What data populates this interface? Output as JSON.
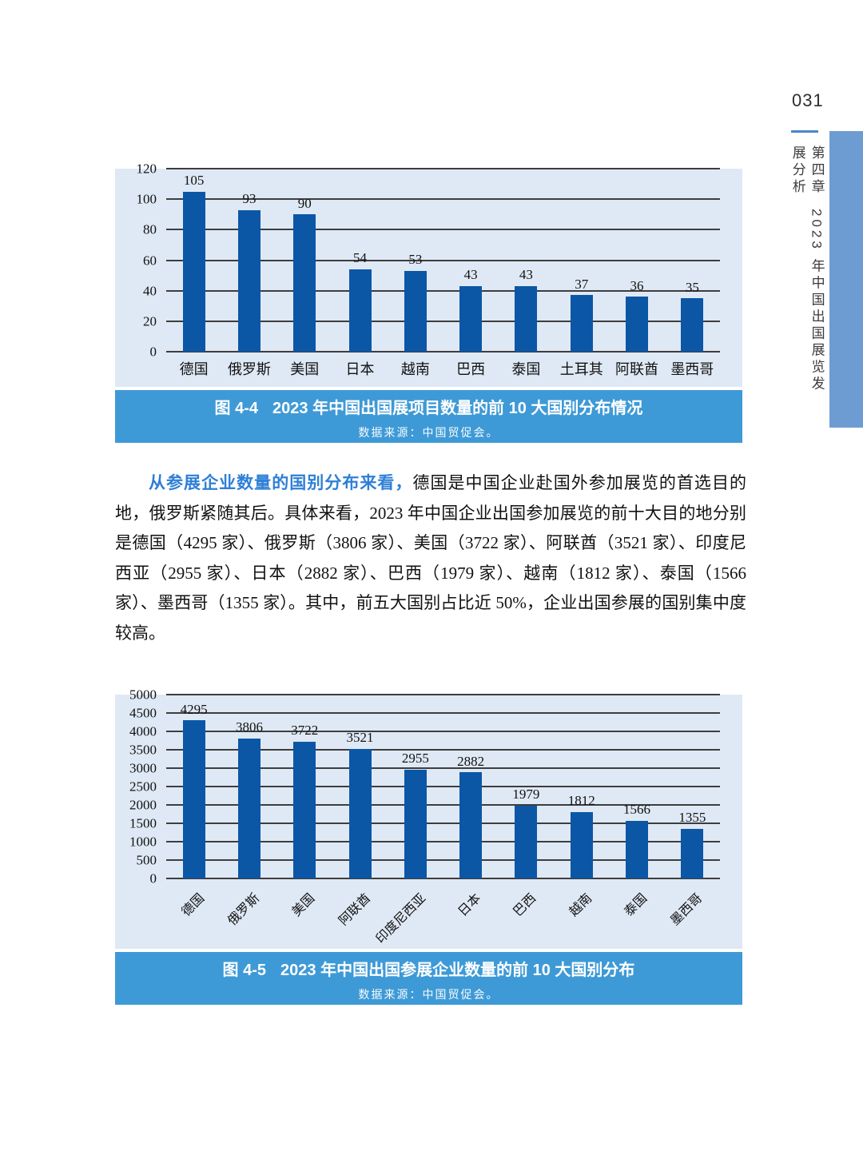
{
  "page": {
    "number": "031",
    "margin_chapter": "第四章",
    "margin_title": "2023 年中国出国展览发展分析"
  },
  "paragraph": {
    "lead": "从参展企业数量的国别分布来看，",
    "body": "德国是中国企业赴国外参加展览的首选目的地，俄罗斯紧随其后。具体来看，2023 年中国企业出国参加展览的前十大目的地分别是德国（4295 家）、俄罗斯（3806 家）、美国（3722 家）、阿联酋（3521 家）、印度尼西亚（2955 家）、日本（2882 家）、巴西（1979 家）、越南（1812 家）、泰国（1566 家）、墨西哥（1355 家）。其中，前五大国别占比近 50%，企业出国参展的国别集中度较高。"
  },
  "colors": {
    "bar": "#0B57A6",
    "panel_background": "#DFE9F5",
    "caption_background": "#3E9AD6",
    "sidebar_accent_bar": "#6C9CD2",
    "lead_text": "#2E7FD6",
    "page_number_rule": "#4A86C8"
  },
  "chart_data": [
    {
      "type": "bar",
      "fig_label": "图 4-4",
      "title": "2023 年中国出国展项目数量的前 10 大国别分布情况",
      "source": "数据来源：中国贸促会。",
      "categories": [
        "德国",
        "俄罗斯",
        "美国",
        "日本",
        "越南",
        "巴西",
        "泰国",
        "土耳其",
        "阿联酋",
        "墨西哥"
      ],
      "values": [
        105,
        93,
        90,
        54,
        53,
        43,
        43,
        37,
        36,
        35
      ],
      "xlabel": "",
      "ylabel": "",
      "ylim": [
        0,
        120
      ],
      "ytick_step": 20,
      "grid": "horizontal",
      "legend": "none",
      "rotated_x_labels": false
    },
    {
      "type": "bar",
      "fig_label": "图 4-5",
      "title": "2023 年中国出国参展企业数量的前 10 大国别分布",
      "source": "数据来源：中国贸促会。",
      "categories": [
        "德国",
        "俄罗斯",
        "美国",
        "阿联酋",
        "印度尼西亚",
        "日本",
        "巴西",
        "越南",
        "泰国",
        "墨西哥"
      ],
      "values": [
        4295,
        3806,
        3722,
        3521,
        2955,
        2882,
        1979,
        1812,
        1566,
        1355
      ],
      "xlabel": "",
      "ylabel": "",
      "ylim": [
        0,
        5000
      ],
      "ytick_step": 500,
      "grid": "horizontal",
      "legend": "none",
      "rotated_x_labels": true
    }
  ]
}
